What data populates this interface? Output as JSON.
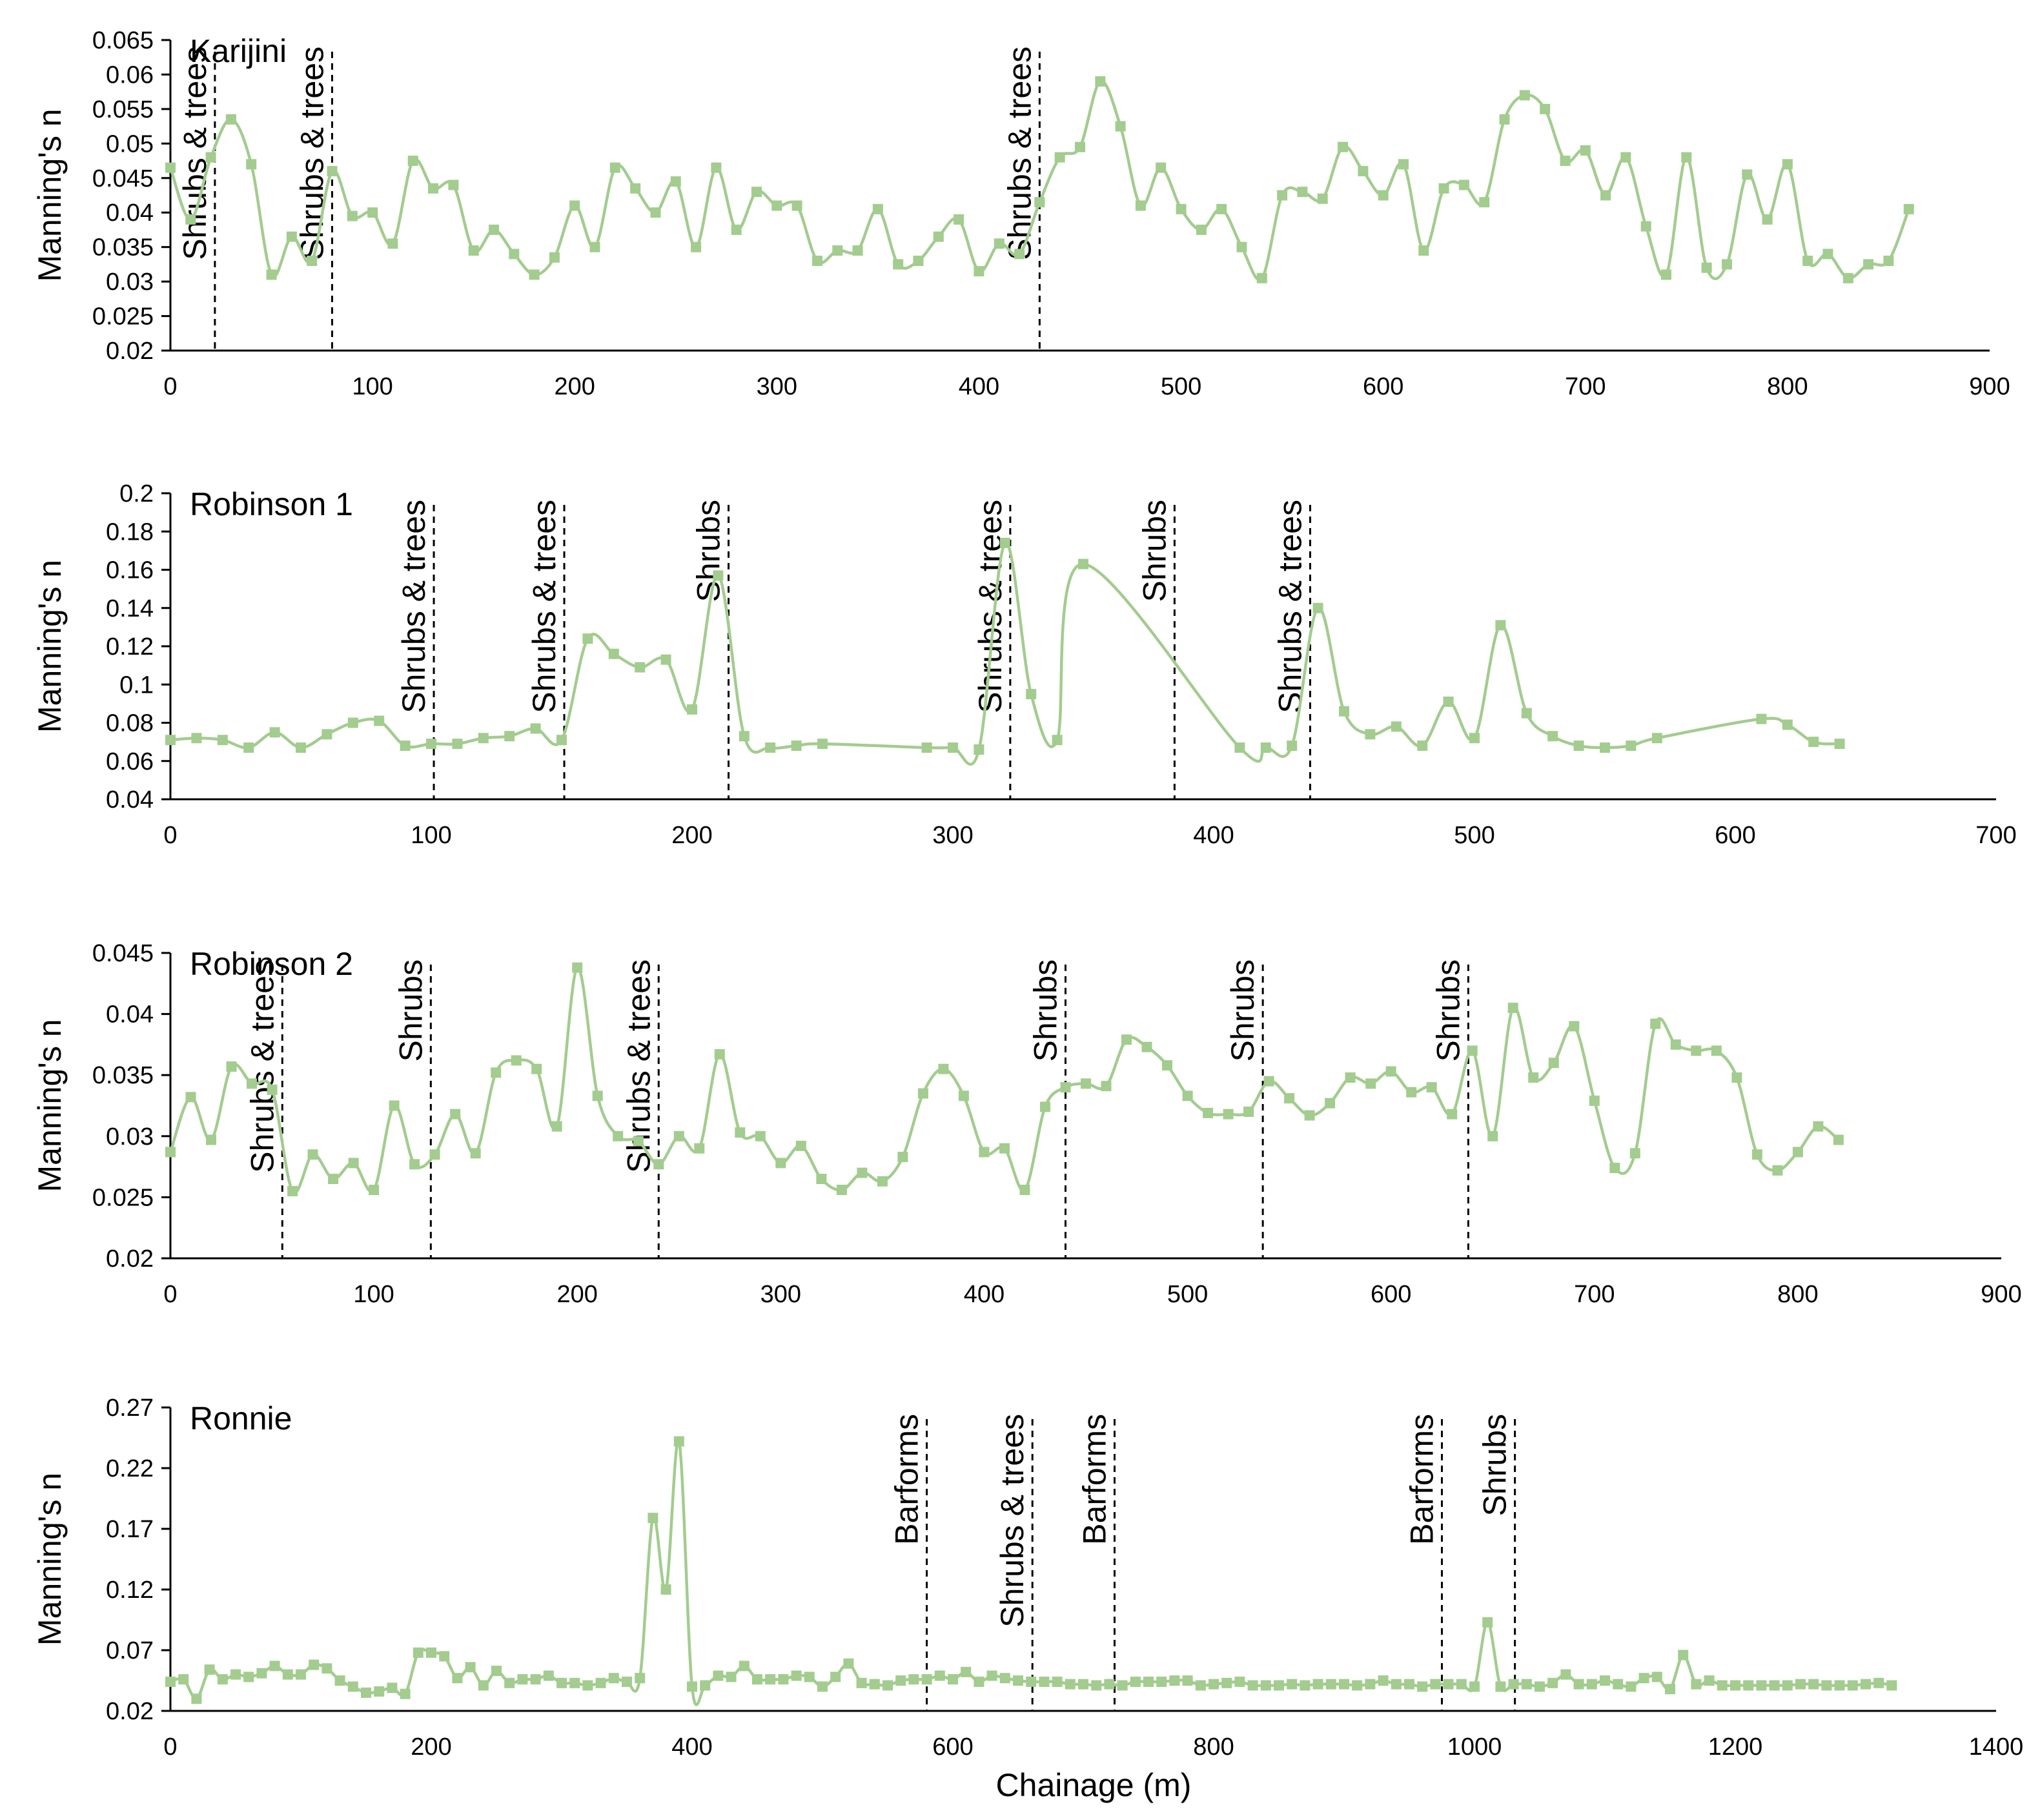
{
  "figure": {
    "xlabel": "Chainage (m)"
  },
  "style": {
    "series_color": "#a3cc8f",
    "axis_color": "#000000",
    "annotation_line_color": "#000000"
  },
  "chart_data": [
    {
      "type": "line",
      "title": "Karijini",
      "ylabel": "Manning's n",
      "xlabel": "",
      "xlim": [
        0,
        900
      ],
      "ylim": [
        0.02,
        0.065
      ],
      "xticks": [
        "0",
        "100",
        "200",
        "300",
        "400",
        "500",
        "600",
        "700",
        "800",
        "900"
      ],
      "yticks": [
        "0.02",
        "0.025",
        "0.03",
        "0.035",
        "0.04",
        "0.045",
        "0.05",
        "0.055",
        "0.06",
        "0.065"
      ],
      "x": [
        0,
        10,
        20,
        30,
        40,
        50,
        60,
        70,
        80,
        90,
        100,
        110,
        120,
        130,
        140,
        150,
        160,
        170,
        180,
        190,
        200,
        210,
        220,
        230,
        240,
        250,
        260,
        270,
        280,
        290,
        300,
        310,
        320,
        330,
        340,
        350,
        360,
        370,
        380,
        390,
        400,
        410,
        420,
        430,
        440,
        450,
        460,
        470,
        480,
        490,
        500,
        510,
        520,
        530,
        540,
        550,
        560,
        570,
        580,
        590,
        600,
        610,
        620,
        630,
        640,
        650,
        660,
        670,
        680,
        690,
        700,
        710,
        720,
        730,
        740,
        750,
        760,
        770,
        780,
        790,
        800,
        810,
        820,
        830,
        840,
        850,
        860
      ],
      "y": [
        0.0465,
        0.039,
        0.048,
        0.0535,
        0.047,
        0.031,
        0.0365,
        0.033,
        0.046,
        0.0395,
        0.04,
        0.0355,
        0.0475,
        0.0435,
        0.044,
        0.0345,
        0.0375,
        0.034,
        0.031,
        0.0335,
        0.041,
        0.035,
        0.0465,
        0.0435,
        0.04,
        0.0445,
        0.035,
        0.0465,
        0.0375,
        0.043,
        0.041,
        0.041,
        0.033,
        0.0345,
        0.0345,
        0.0405,
        0.0325,
        0.033,
        0.0365,
        0.039,
        0.0315,
        0.0355,
        0.034,
        0.0415,
        0.048,
        0.0495,
        0.059,
        0.0525,
        0.041,
        0.0465,
        0.0405,
        0.0375,
        0.0405,
        0.035,
        0.0305,
        0.0425,
        0.043,
        0.042,
        0.0495,
        0.046,
        0.0425,
        0.047,
        0.0345,
        0.0435,
        0.044,
        0.0415,
        0.0535,
        0.057,
        0.055,
        0.0475,
        0.049,
        0.0425,
        0.048,
        0.038,
        0.031,
        0.048,
        0.032,
        0.0325,
        0.0455,
        0.039,
        0.047,
        0.033,
        0.034,
        0.0305,
        0.0325,
        0.033,
        0.0405
      ],
      "annotations": [
        {
          "x": 22,
          "text": "Shrubs & trees"
        },
        {
          "x": 80,
          "text": "Shrubs & trees"
        },
        {
          "x": 430,
          "text": "Shrubs & trees"
        }
      ]
    },
    {
      "type": "line",
      "title": "Robinson 1",
      "ylabel": "Manning's n",
      "xlabel": "",
      "xlim": [
        0,
        700
      ],
      "ylim": [
        0.04,
        0.2
      ],
      "xticks": [
        "0",
        "100",
        "200",
        "300",
        "400",
        "500",
        "600",
        "700"
      ],
      "yticks": [
        "0.04",
        "0.06",
        "0.08",
        "0.1",
        "0.12",
        "0.14",
        "0.16",
        "0.18",
        "0.2"
      ],
      "x": [
        0,
        10,
        20,
        30,
        40,
        50,
        60,
        70,
        80,
        90,
        100,
        110,
        120,
        130,
        140,
        150,
        160,
        170,
        180,
        190,
        200,
        210,
        220,
        230,
        240,
        250,
        290,
        300,
        310,
        320,
        330,
        340,
        350,
        410,
        420,
        430,
        440,
        450,
        460,
        470,
        480,
        490,
        500,
        510,
        520,
        530,
        540,
        550,
        560,
        570,
        610,
        620,
        630,
        640
      ],
      "y": [
        0.071,
        0.072,
        0.071,
        0.067,
        0.075,
        0.067,
        0.074,
        0.08,
        0.081,
        0.068,
        0.069,
        0.069,
        0.072,
        0.073,
        0.077,
        0.071,
        0.124,
        0.116,
        0.109,
        0.113,
        0.087,
        0.157,
        0.073,
        0.067,
        0.068,
        0.069,
        0.067,
        0.067,
        0.066,
        0.174,
        0.095,
        0.071,
        0.163,
        0.067,
        0.067,
        0.068,
        0.14,
        0.086,
        0.074,
        0.078,
        0.068,
        0.091,
        0.072,
        0.131,
        0.085,
        0.073,
        0.068,
        0.067,
        0.068,
        0.072,
        0.082,
        0.079,
        0.07,
        0.069
      ],
      "annotations": [
        {
          "x": 101,
          "text": "Shrubs & trees"
        },
        {
          "x": 151,
          "text": "Shrubs & trees"
        },
        {
          "x": 214,
          "text": "Shrubs"
        },
        {
          "x": 322,
          "text": "Shrubs & trees"
        },
        {
          "x": 385,
          "text": "Shrubs"
        },
        {
          "x": 437,
          "text": "Shrubs & trees"
        }
      ]
    },
    {
      "type": "line",
      "title": "Robinson 2",
      "ylabel": "Manning's n",
      "xlabel": "",
      "xlim": [
        0,
        900
      ],
      "ylim": [
        0.02,
        0.045
      ],
      "xticks": [
        "0",
        "100",
        "200",
        "300",
        "400",
        "500",
        "600",
        "700",
        "800",
        "900"
      ],
      "yticks": [
        "0.02",
        "0.025",
        "0.03",
        "0.035",
        "0.04",
        "0.045"
      ],
      "x": [
        0,
        10,
        20,
        30,
        40,
        50,
        60,
        70,
        80,
        90,
        100,
        110,
        120,
        130,
        140,
        150,
        160,
        170,
        180,
        190,
        200,
        210,
        220,
        230,
        240,
        250,
        260,
        270,
        280,
        290,
        300,
        310,
        320,
        330,
        340,
        350,
        360,
        370,
        380,
        390,
        400,
        410,
        420,
        430,
        440,
        450,
        460,
        470,
        480,
        490,
        500,
        510,
        520,
        530,
        540,
        550,
        560,
        570,
        580,
        590,
        600,
        610,
        620,
        630,
        640,
        650,
        660,
        670,
        680,
        690,
        700,
        710,
        720,
        730,
        740,
        750,
        760,
        770,
        780,
        790,
        800,
        810,
        820
      ],
      "y": [
        0.0287,
        0.0332,
        0.0297,
        0.0357,
        0.0343,
        0.0338,
        0.0255,
        0.0285,
        0.0265,
        0.0278,
        0.0256,
        0.0325,
        0.0277,
        0.0285,
        0.0318,
        0.0286,
        0.0352,
        0.0362,
        0.0355,
        0.0308,
        0.0438,
        0.0333,
        0.03,
        0.0296,
        0.0277,
        0.03,
        0.029,
        0.0367,
        0.0303,
        0.03,
        0.0278,
        0.0292,
        0.0265,
        0.0256,
        0.027,
        0.0263,
        0.0283,
        0.0335,
        0.0355,
        0.0333,
        0.0287,
        0.029,
        0.0256,
        0.0324,
        0.034,
        0.0343,
        0.0341,
        0.0379,
        0.0373,
        0.0358,
        0.0333,
        0.0319,
        0.0318,
        0.032,
        0.0345,
        0.0331,
        0.0317,
        0.0327,
        0.0348,
        0.0343,
        0.0353,
        0.0336,
        0.034,
        0.0318,
        0.037,
        0.03,
        0.0405,
        0.0348,
        0.036,
        0.039,
        0.0329,
        0.0274,
        0.0286,
        0.0392,
        0.0375,
        0.037,
        0.037,
        0.0348,
        0.0285,
        0.0272,
        0.0287,
        0.0308,
        0.0297
      ],
      "annotations": [
        {
          "x": 55,
          "text": "Shrubs & trees"
        },
        {
          "x": 128,
          "text": "Shrubs"
        },
        {
          "x": 240,
          "text": "Shrubs & trees"
        },
        {
          "x": 440,
          "text": "Shrubs"
        },
        {
          "x": 537,
          "text": "Shrubs"
        },
        {
          "x": 638,
          "text": "Shrubs"
        }
      ]
    },
    {
      "type": "line",
      "title": "Ronnie",
      "ylabel": "Manning's n",
      "xlabel": "Chainage (m)",
      "xlim": [
        0,
        1400
      ],
      "ylim": [
        0.02,
        0.27
      ],
      "xticks": [
        "0",
        "200",
        "400",
        "600",
        "800",
        "1000",
        "1200",
        "1400"
      ],
      "yticks": [
        "0.02",
        "0.07",
        "0.12",
        "0.17",
        "0.22",
        "0.27"
      ],
      "x": [
        0,
        10,
        20,
        30,
        40,
        50,
        60,
        70,
        80,
        90,
        100,
        110,
        120,
        130,
        140,
        150,
        160,
        170,
        180,
        190,
        200,
        210,
        220,
        230,
        240,
        250,
        260,
        270,
        280,
        290,
        300,
        310,
        320,
        330,
        340,
        350,
        360,
        370,
        380,
        390,
        400,
        410,
        420,
        430,
        440,
        450,
        460,
        470,
        480,
        490,
        500,
        510,
        520,
        530,
        540,
        550,
        560,
        570,
        580,
        590,
        600,
        610,
        620,
        630,
        640,
        650,
        660,
        670,
        680,
        690,
        700,
        710,
        720,
        730,
        740,
        750,
        760,
        770,
        780,
        790,
        800,
        810,
        820,
        830,
        840,
        850,
        860,
        870,
        880,
        890,
        900,
        910,
        920,
        930,
        940,
        950,
        960,
        970,
        980,
        990,
        1000,
        1010,
        1020,
        1030,
        1040,
        1050,
        1060,
        1070,
        1080,
        1090,
        1100,
        1110,
        1120,
        1130,
        1140,
        1150,
        1160,
        1170,
        1180,
        1190,
        1200,
        1210,
        1220,
        1230,
        1240,
        1250,
        1260,
        1270,
        1280,
        1290,
        1300,
        1310,
        1320
      ],
      "y": [
        0.044,
        0.046,
        0.03,
        0.054,
        0.046,
        0.05,
        0.048,
        0.051,
        0.057,
        0.05,
        0.05,
        0.058,
        0.055,
        0.045,
        0.04,
        0.035,
        0.036,
        0.039,
        0.034,
        0.068,
        0.068,
        0.065,
        0.047,
        0.056,
        0.041,
        0.053,
        0.043,
        0.046,
        0.046,
        0.049,
        0.043,
        0.043,
        0.041,
        0.043,
        0.047,
        0.044,
        0.047,
        0.179,
        0.12,
        0.242,
        0.04,
        0.041,
        0.049,
        0.048,
        0.057,
        0.046,
        0.046,
        0.046,
        0.049,
        0.048,
        0.04,
        0.048,
        0.059,
        0.043,
        0.042,
        0.041,
        0.045,
        0.046,
        0.046,
        0.049,
        0.046,
        0.052,
        0.044,
        0.049,
        0.047,
        0.045,
        0.044,
        0.044,
        0.044,
        0.042,
        0.042,
        0.041,
        0.042,
        0.041,
        0.044,
        0.044,
        0.044,
        0.045,
        0.045,
        0.041,
        0.042,
        0.043,
        0.044,
        0.041,
        0.041,
        0.041,
        0.042,
        0.041,
        0.042,
        0.042,
        0.042,
        0.041,
        0.042,
        0.045,
        0.042,
        0.042,
        0.04,
        0.042,
        0.042,
        0.042,
        0.04,
        0.093,
        0.04,
        0.042,
        0.042,
        0.04,
        0.043,
        0.05,
        0.042,
        0.042,
        0.045,
        0.042,
        0.04,
        0.047,
        0.048,
        0.038,
        0.066,
        0.042,
        0.045,
        0.041,
        0.041,
        0.041,
        0.041,
        0.041,
        0.041,
        0.042,
        0.042,
        0.041,
        0.041,
        0.041,
        0.042,
        0.043,
        0.041
      ],
      "annotations": [
        {
          "x": 580,
          "text": "Barforms"
        },
        {
          "x": 661,
          "text": "Shrubs & trees"
        },
        {
          "x": 724,
          "text": "Barforms"
        },
        {
          "x": 975,
          "text": "Barforms"
        },
        {
          "x": 1031,
          "text": "Shrubs"
        }
      ]
    }
  ]
}
